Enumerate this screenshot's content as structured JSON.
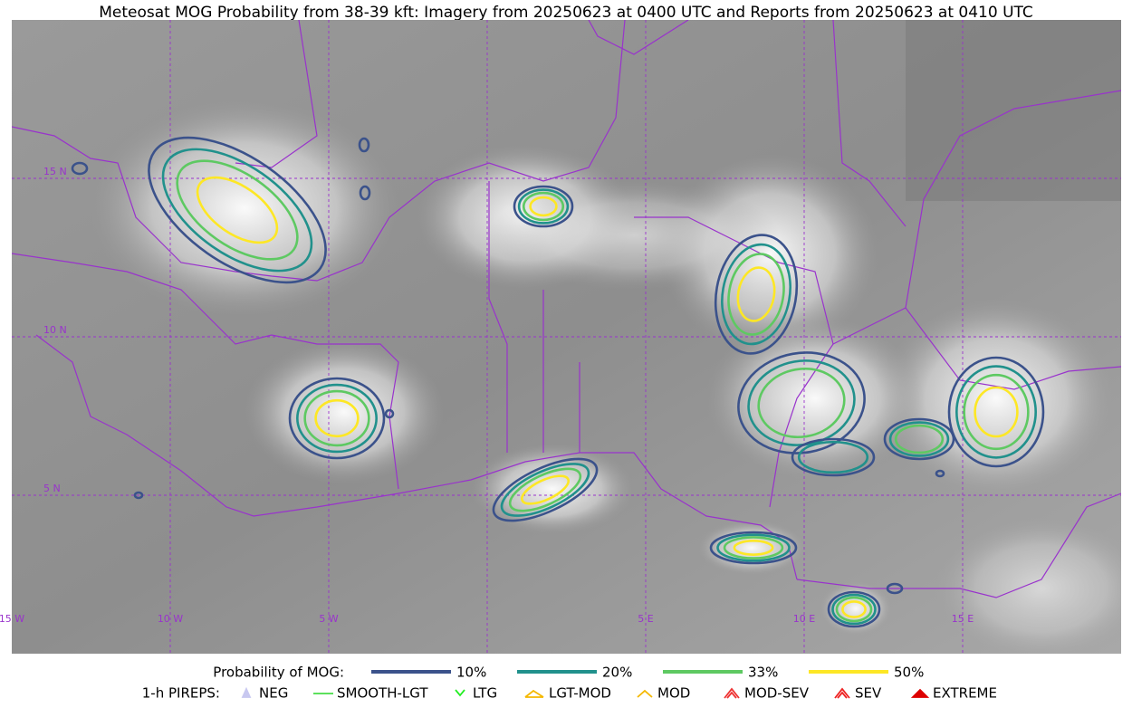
{
  "map": {
    "title": "Meteosat MOG Probability from 38-39 kft: Imagery from 20250623 at 0400 UTC and Reports from 20250623 at 0410 UTC",
    "lat_labels": [
      "15 N",
      "10 N",
      "5 N"
    ],
    "lon_labels": [
      "15 W",
      "10 W",
      "5 W",
      "5 E",
      "10 E",
      "15 E"
    ]
  },
  "legend": {
    "probability": {
      "title": "Probability of MOG:",
      "levels": [
        {
          "label": "10%",
          "color": "#3b528b"
        },
        {
          "label": "20%",
          "color": "#21918c"
        },
        {
          "label": "33%",
          "color": "#5ec962"
        },
        {
          "label": "50%",
          "color": "#fde725"
        }
      ]
    },
    "pireps": {
      "title": "1-h PIREPS:",
      "items": [
        {
          "label": "NEG",
          "color": "#c8c8f0"
        },
        {
          "label": "SMOOTH-LGT",
          "color": "#44dd44"
        },
        {
          "label": "LTG",
          "color": "#22ee22"
        },
        {
          "label": "LGT-MOD",
          "color": "#f5b800"
        },
        {
          "label": "MOD",
          "color": "#f5b800"
        },
        {
          "label": "MOD-SEV",
          "color": "#ee3333"
        },
        {
          "label": "SEV",
          "color": "#ee2222"
        },
        {
          "label": "EXTREME",
          "color": "#dd0000"
        }
      ]
    }
  }
}
